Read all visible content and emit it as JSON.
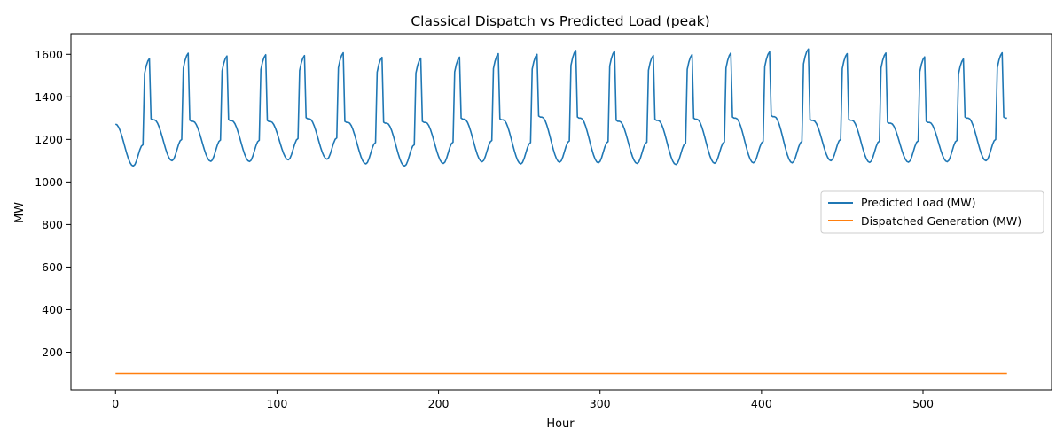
{
  "chart_data": {
    "type": "line",
    "title": "Classical Dispatch vs Predicted Load (peak)",
    "xlabel": "Hour",
    "ylabel": "MW",
    "xlim": [
      -27.6,
      579.6
    ],
    "ylim": [
      23,
      1697
    ],
    "xticks": [
      0,
      100,
      200,
      300,
      400,
      500
    ],
    "yticks": [
      200,
      400,
      600,
      800,
      1000,
      1200,
      1400,
      1600
    ],
    "grid": false,
    "legend_position": "center-right",
    "series": [
      {
        "name": "Predicted Load (MW)",
        "color": "#1f77b4",
        "x_start": 0,
        "x_end": 552,
        "day_peaks": [
          1580,
          1605,
          1592,
          1598,
          1594,
          1607,
          1586,
          1582,
          1587,
          1603,
          1600,
          1618,
          1615,
          1595,
          1599,
          1606,
          1612,
          1625,
          1603,
          1606,
          1588,
          1578,
          1607
        ],
        "day_troughs": [
          1075,
          1100,
          1097,
          1096,
          1104,
          1107,
          1085,
          1075,
          1087,
          1095,
          1085,
          1093,
          1090,
          1087,
          1082,
          1088,
          1090,
          1090,
          1100,
          1092,
          1093,
          1095,
          1100
        ],
        "day_start_values": [
          1272,
          1292,
          1285,
          1288,
          1284,
          1297,
          1280,
          1276,
          1280,
          1295,
          1292,
          1305,
          1300,
          1285,
          1289,
          1295,
          1300,
          1307,
          1289,
          1290,
          1276,
          1280,
          1300
        ]
      },
      {
        "name": "Dispatched Generation (MW)",
        "color": "#ff7f0e",
        "x": [
          0,
          552
        ],
        "values": [
          100,
          100
        ]
      }
    ]
  }
}
